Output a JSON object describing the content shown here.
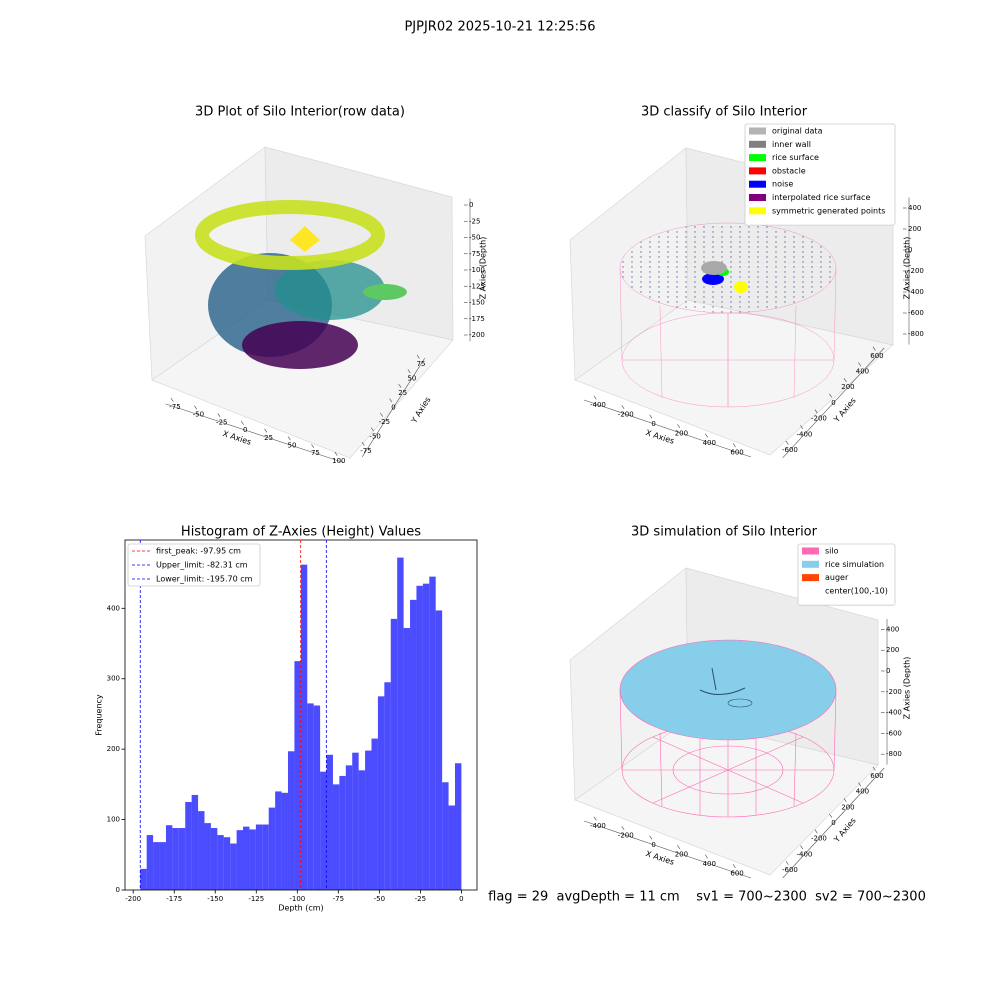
{
  "title": "PJPJR02 2025-10-21 12:25:56",
  "footer": "flag = 29  avgDepth = 11 cm    sv1 = 700~2300  sv2 = 700~2300",
  "chart_data": [
    {
      "type": "scatter3d",
      "title": "3D Plot of Silo Interior(row data)",
      "xlabel": "X Axies",
      "ylabel": "Y Axies",
      "zlabel": "Z Axies (Depth)",
      "xlim": [
        -85,
        105
      ],
      "xticks": [
        -75,
        -50,
        -25,
        0,
        25,
        50,
        75,
        100
      ],
      "ylim": [
        -85,
        85
      ],
      "yticks": [
        -75,
        -50,
        -25,
        0,
        25,
        50,
        75
      ],
      "zlim": [
        -210,
        10
      ],
      "zticks": [
        0,
        -25,
        -50,
        -75,
        -100,
        -125,
        -150,
        -175,
        -200
      ]
    },
    {
      "type": "scatter3d",
      "title": "3D classify of Silo Interior",
      "xlabel": "X Axies",
      "ylabel": "Y Axies",
      "zlabel": "Z Axies (Depth)",
      "xlim": [
        -500,
        700
      ],
      "xticks": [
        -400,
        -200,
        0,
        200,
        400,
        600
      ],
      "ylim": [
        -700,
        700
      ],
      "yticks": [
        -600,
        -400,
        -200,
        0,
        200,
        400,
        600
      ],
      "zlim": [
        -900,
        500
      ],
      "zticks": [
        400,
        200,
        0,
        -200,
        -400,
        -600,
        -800
      ],
      "legend": [
        {
          "name": "original data",
          "color": "#b3b3b3"
        },
        {
          "name": "inner wall",
          "color": "#808080"
        },
        {
          "name": "rice surface",
          "color": "#00ff00"
        },
        {
          "name": "obstacle",
          "color": "#ff0000"
        },
        {
          "name": "noise",
          "color": "#0000ff"
        },
        {
          "name": "interpolated rice surface",
          "color": "#800080"
        },
        {
          "name": "symmetric generated points",
          "color": "#ffff00"
        }
      ]
    },
    {
      "type": "histogram",
      "title": "Histogram of Z-Axies (Height) Values",
      "xlabel": "Depth (cm)",
      "ylabel": "Frequency",
      "color": "#0000ff",
      "alpha": 0.7,
      "bins": [
        -195.7,
        -191.79,
        -187.87,
        -183.96,
        -180.04,
        -176.13,
        -172.22,
        -168.3,
        -164.39,
        -160.47,
        -156.56,
        -152.65,
        -148.73,
        -144.82,
        -140.9,
        -136.99,
        -133.08,
        -129.16,
        -125.25,
        -121.33,
        -117.42,
        -113.51,
        -109.59,
        -105.68,
        -101.76,
        -97.85,
        -93.94,
        -90.02,
        -86.11,
        -82.19,
        -78.28,
        -74.37,
        -70.45,
        -66.54,
        -62.62,
        -58.71,
        -54.8,
        -50.88,
        -46.97,
        -43.05,
        -39.14,
        -35.23,
        -31.31,
        -27.4,
        -23.48,
        -19.57,
        -15.66,
        -11.74,
        -7.83,
        -3.91,
        0
      ],
      "counts": [
        30,
        78,
        68,
        68,
        92,
        88,
        88,
        125,
        135,
        112,
        95,
        88,
        78,
        75,
        66,
        85,
        90,
        86,
        93,
        93,
        117,
        140,
        138,
        197,
        325,
        462,
        265,
        262,
        168,
        192,
        150,
        162,
        177,
        195,
        170,
        198,
        215,
        275,
        295,
        385,
        472,
        372,
        412,
        432,
        435,
        445,
        397,
        153,
        120,
        180
      ],
      "xlim": [
        -205,
        9.5
      ],
      "xticks": [
        -200,
        -175,
        -150,
        -125,
        -100,
        -75,
        -50,
        -25,
        0
      ],
      "ylim": [
        0,
        497
      ],
      "yticks": [
        0,
        100,
        200,
        300,
        400
      ],
      "lines": [
        {
          "name": "first_peak: -97.95 cm",
          "value": -97.95,
          "color": "#ff0000"
        },
        {
          "name": "Upper_limit: -82.31 cm",
          "value": -82.31,
          "color": "#0000ff"
        },
        {
          "name": "Lower_limit: -195.70 cm",
          "value": -195.7,
          "color": "#0000ff"
        }
      ]
    },
    {
      "type": "scatter3d",
      "title": "3D simulation of Silo Interior",
      "xlabel": "X Axies",
      "ylabel": "Y Axies",
      "zlabel": "Z Axies (Depth)",
      "xlim": [
        -500,
        700
      ],
      "xticks": [
        -400,
        -200,
        0,
        200,
        400,
        600
      ],
      "ylim": [
        -700,
        700
      ],
      "yticks": [
        -600,
        -400,
        -200,
        0,
        200,
        400,
        600
      ],
      "zlim": [
        -900,
        500
      ],
      "zticks": [
        400,
        200,
        0,
        -200,
        -400,
        -600,
        -800
      ],
      "legend": [
        {
          "name": "silo",
          "color": "#ff69b4"
        },
        {
          "name": "rice simulation",
          "color": "#87ceeb"
        },
        {
          "name": "auger",
          "color": "#ff4500"
        },
        {
          "name": "center(100,-10)"
        }
      ]
    }
  ]
}
